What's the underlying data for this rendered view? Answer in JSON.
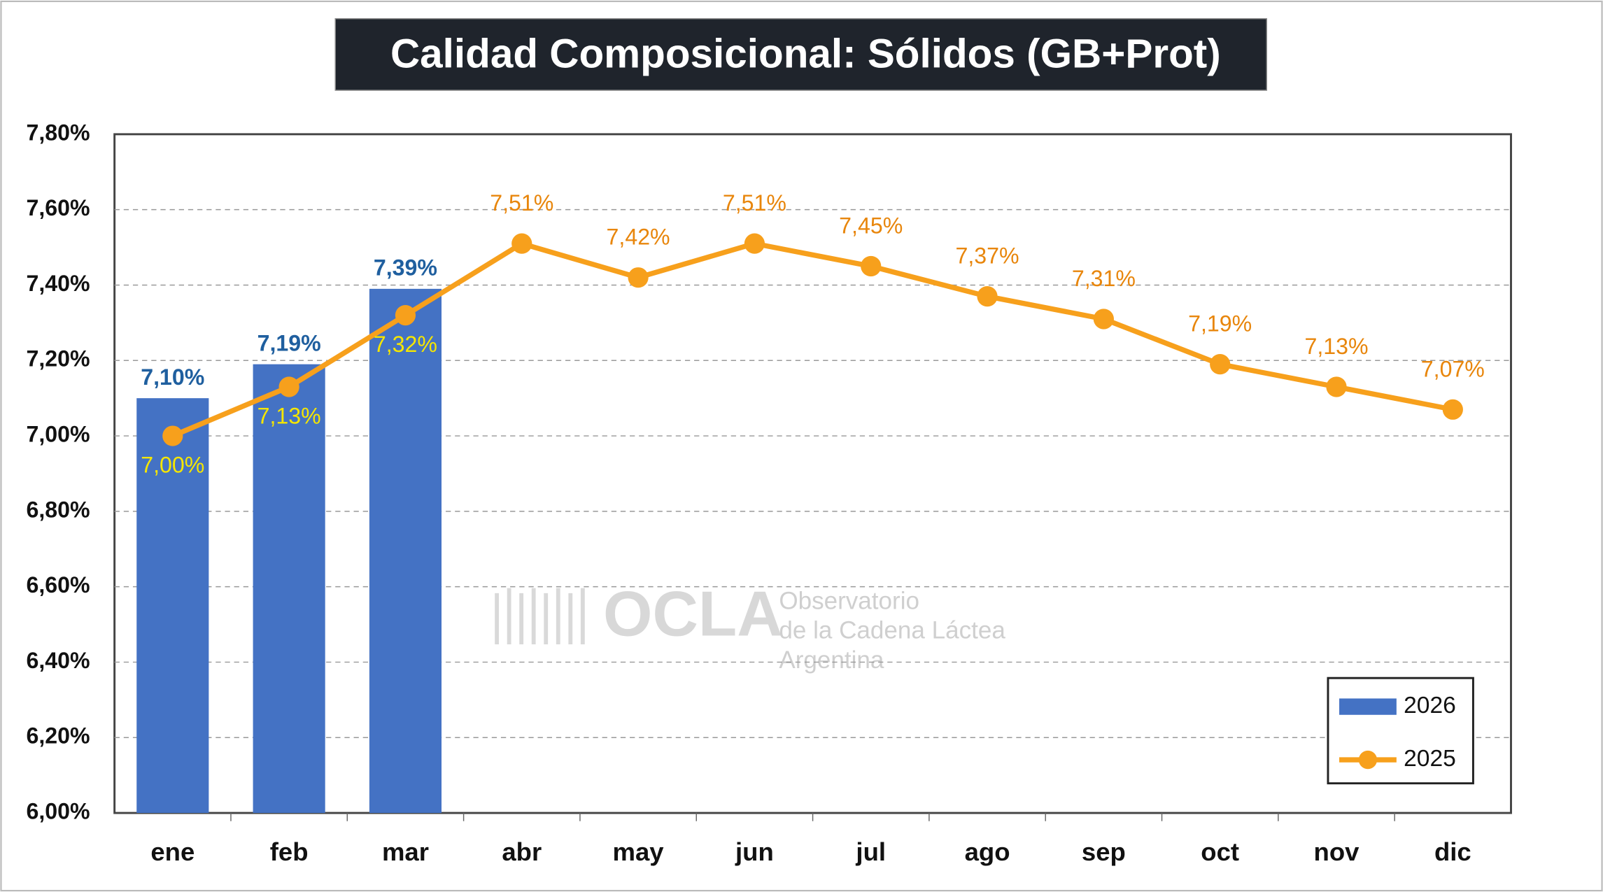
{
  "chart_data": {
    "type": "bar+line",
    "title": "Calidad Composicional: Sólidos (GB+Prot)",
    "categories": [
      "ene",
      "feb",
      "mar",
      "abr",
      "may",
      "jun",
      "jul",
      "ago",
      "sep",
      "oct",
      "nov",
      "dic"
    ],
    "series": [
      {
        "name": "2026",
        "type": "bar",
        "color": "#4472c4",
        "values": [
          7.1,
          7.19,
          7.39,
          null,
          null,
          null,
          null,
          null,
          null,
          null,
          null,
          null
        ],
        "value_labels": [
          "7,10%",
          "7,19%",
          "7,39%",
          null,
          null,
          null,
          null,
          null,
          null,
          null,
          null,
          null
        ]
      },
      {
        "name": "2025",
        "type": "line",
        "color": "#f7a01c",
        "values": [
          7.0,
          7.13,
          7.32,
          7.51,
          7.42,
          7.51,
          7.45,
          7.37,
          7.31,
          7.19,
          7.13,
          7.07
        ],
        "value_labels": [
          "7,00%",
          "7,13%",
          "7,32%",
          "7,51%",
          "7,42%",
          "7,51%",
          "7,45%",
          "7,37%",
          "7,31%",
          "7,19%",
          "7,13%",
          "7,07%"
        ]
      }
    ],
    "ylim": [
      6.0,
      7.8
    ],
    "yticks": [
      {
        "value": 6.0,
        "label": "6,00%"
      },
      {
        "value": 6.2,
        "label": "6,20%"
      },
      {
        "value": 6.4,
        "label": "6,40%"
      },
      {
        "value": 6.6,
        "label": "6,60%"
      },
      {
        "value": 6.8,
        "label": "6,80%"
      },
      {
        "value": 7.0,
        "label": "7,00%"
      },
      {
        "value": 7.2,
        "label": "7,20%"
      },
      {
        "value": 7.4,
        "label": "7,40%"
      },
      {
        "value": 7.6,
        "label": "7,60%"
      },
      {
        "value": 7.8,
        "label": "7,80%"
      }
    ],
    "grid": true,
    "legend": "bottom-right",
    "watermark": {
      "logo": "OCLA",
      "lines": [
        "Observatorio",
        "de la Cadena Láctea",
        "Argentina"
      ]
    }
  }
}
